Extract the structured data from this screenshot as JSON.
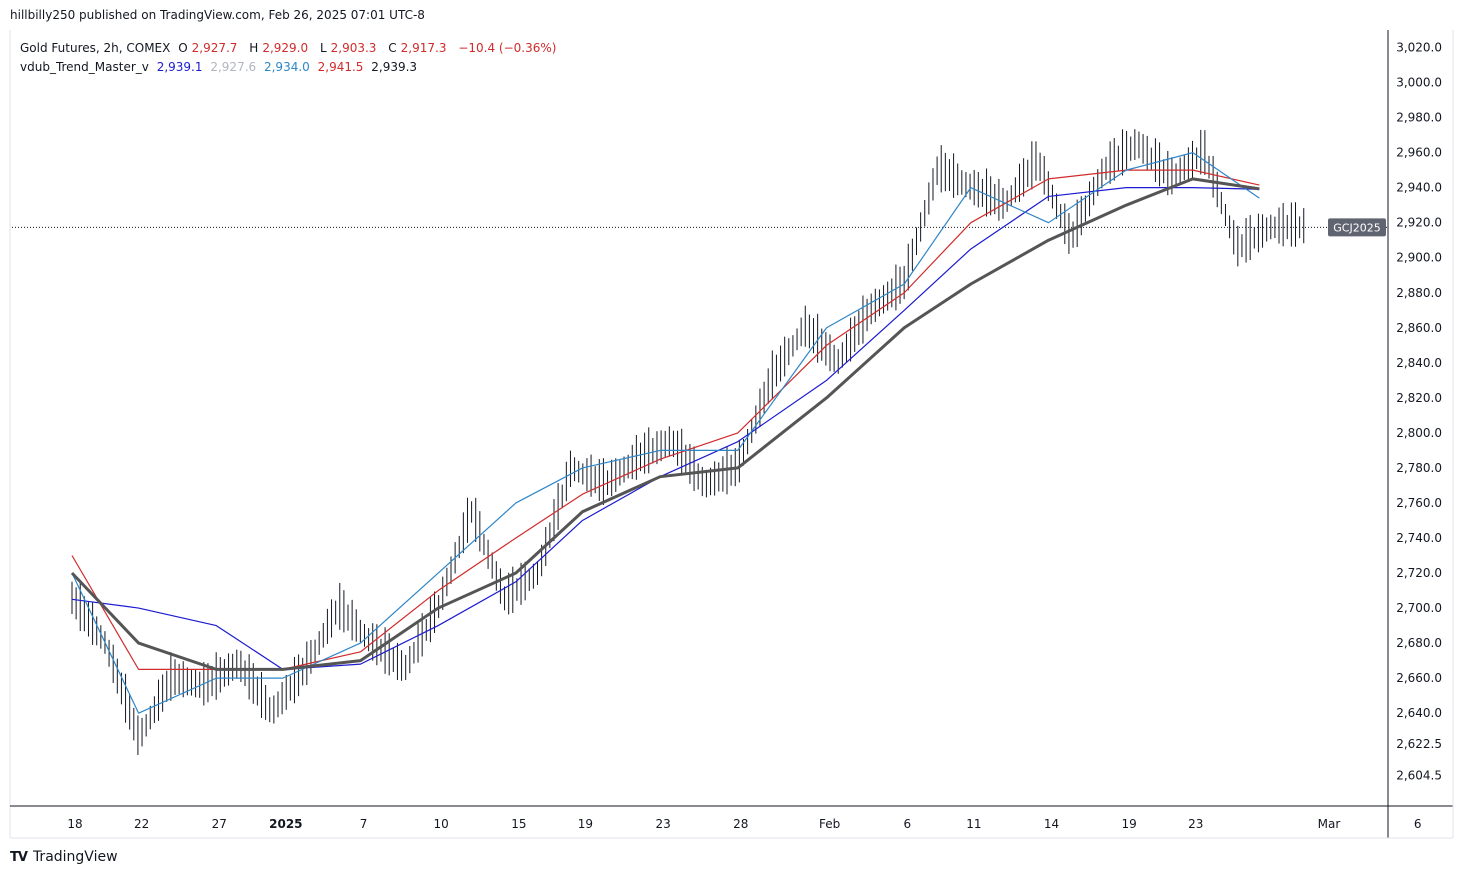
{
  "header": {
    "publisher_line": "hillbilly250 published on TradingView.com, Feb 26, 2025 07:01 UTC-8"
  },
  "legend": {
    "symbol": "Gold Futures, 2h, COMEX",
    "o_label": "O",
    "o_value": "2,927.7",
    "h_label": "H",
    "h_value": "2,929.0",
    "l_label": "L",
    "l_value": "2,903.3",
    "c_label": "C",
    "c_value": "2,917.3",
    "change": "−10.4 (−0.36%)",
    "indicator_name": "vdub_Trend_Master_v",
    "ind_values": [
      "2,939.1",
      "2,927.6",
      "2,934.0",
      "2,941.5",
      "2,939.3"
    ],
    "ind_colors": [
      "#1b1bd1",
      "#b2b5be",
      "#2e86c8",
      "#d12b2b",
      "#131722"
    ]
  },
  "price_tag": {
    "label": "GCJ2025",
    "color": "#606470"
  },
  "footer": {
    "brand": "TradingView"
  },
  "chart_data": {
    "type": "line",
    "title": "Gold Futures, 2h, COMEX",
    "ylim": [
      2587,
      3030
    ],
    "y_ticks": [
      3020,
      3000,
      2980,
      2960,
      2940,
      2920,
      2900,
      2880,
      2860,
      2840,
      2820,
      2800,
      2780,
      2760,
      2740,
      2720,
      2700,
      2680,
      2660,
      2640,
      2622.5,
      2604.5
    ],
    "y_tick_labels": [
      "3,020.0",
      "3,000.0",
      "2,980.0",
      "2,960.0",
      "2,940.0",
      "2,920.0",
      "2,900.0",
      "2,880.0",
      "2,860.0",
      "2,840.0",
      "2,820.0",
      "2,800.0",
      "2,780.0",
      "2,760.0",
      "2,740.0",
      "2,720.0",
      "2,700.0",
      "2,680.0",
      "2,660.0",
      "2,640.0",
      "2,622.5",
      "2,604.5"
    ],
    "x_ticks": [
      "18",
      "22",
      "27",
      "2025",
      "7",
      "10",
      "15",
      "19",
      "23",
      "28",
      "Feb",
      "6",
      "11",
      "14",
      "19",
      "23",
      "Mar",
      "6"
    ],
    "x_tick_index": [
      0.0,
      0.6,
      1.3,
      1.9,
      2.6,
      3.3,
      4.0,
      4.6,
      5.3,
      6.0,
      6.8,
      7.5,
      8.1,
      8.8,
      9.5,
      10.1,
      11.3,
      12.1
    ],
    "current_price": 2917.3,
    "price_series": {
      "name": "price",
      "x": [
        0,
        0.3,
        0.6,
        0.9,
        1.2,
        1.5,
        1.8,
        2.1,
        2.4,
        2.7,
        3.0,
        3.3,
        3.6,
        3.9,
        4.2,
        4.5,
        4.8,
        5.1,
        5.4,
        5.7,
        6.0,
        6.3,
        6.6,
        6.9,
        7.2,
        7.5,
        7.8,
        8.1,
        8.4,
        8.7,
        9.0,
        9.3,
        9.6,
        9.9,
        10.2,
        10.5,
        10.8,
        11.1
      ],
      "values": [
        2705,
        2680,
        2625,
        2660,
        2655,
        2668,
        2640,
        2665,
        2700,
        2680,
        2665,
        2700,
        2755,
        2705,
        2720,
        2780,
        2770,
        2785,
        2795,
        2770,
        2780,
        2830,
        2860,
        2840,
        2870,
        2885,
        2950,
        2940,
        2930,
        2955,
        2910,
        2950,
        2965,
        2945,
        2960,
        2905,
        2917.3,
        2917.3
      ]
    },
    "series": [
      {
        "name": "vdub_Trend_Master_v",
        "color": "#1b1bd1",
        "x": [
          0,
          0.6,
          1.3,
          1.9,
          2.6,
          3.3,
          4.0,
          4.6,
          5.3,
          6.0,
          6.8,
          7.5,
          8.1,
          8.8,
          9.5,
          10.1,
          10.7
        ],
        "values": [
          2705,
          2700,
          2690,
          2665,
          2668,
          2690,
          2715,
          2750,
          2775,
          2795,
          2830,
          2870,
          2905,
          2935,
          2940,
          2940,
          2939.1
        ]
      },
      {
        "name": "",
        "color": "#d12b2b",
        "x": [
          0,
          0.6,
          1.3,
          1.9,
          2.6,
          3.3,
          4.0,
          4.6,
          5.3,
          6.0,
          6.8,
          7.5,
          8.1,
          8.8,
          9.5,
          10.1,
          10.7
        ],
        "values": [
          2730,
          2665,
          2665,
          2665,
          2675,
          2710,
          2740,
          2765,
          2785,
          2800,
          2850,
          2880,
          2920,
          2945,
          2950,
          2950,
          2941.5
        ]
      },
      {
        "name": "",
        "color": "#2e86c8",
        "x": [
          0,
          0.6,
          1.3,
          1.9,
          2.6,
          3.3,
          4.0,
          4.6,
          5.3,
          6.0,
          6.8,
          7.5,
          8.1,
          8.8,
          9.5,
          10.1,
          10.7
        ],
        "values": [
          2720,
          2640,
          2660,
          2660,
          2680,
          2720,
          2760,
          2780,
          2790,
          2790,
          2860,
          2885,
          2940,
          2920,
          2950,
          2960,
          2934.0
        ]
      },
      {
        "name": "",
        "color": "#555555",
        "x": [
          0,
          0.6,
          1.3,
          1.9,
          2.6,
          3.3,
          4.0,
          4.6,
          5.3,
          6.0,
          6.8,
          7.5,
          8.1,
          8.8,
          9.5,
          10.1,
          10.7
        ],
        "values": [
          2720,
          2680,
          2665,
          2665,
          2670,
          2700,
          2720,
          2755,
          2775,
          2780,
          2820,
          2860,
          2885,
          2910,
          2930,
          2945,
          2939.3
        ]
      }
    ]
  }
}
